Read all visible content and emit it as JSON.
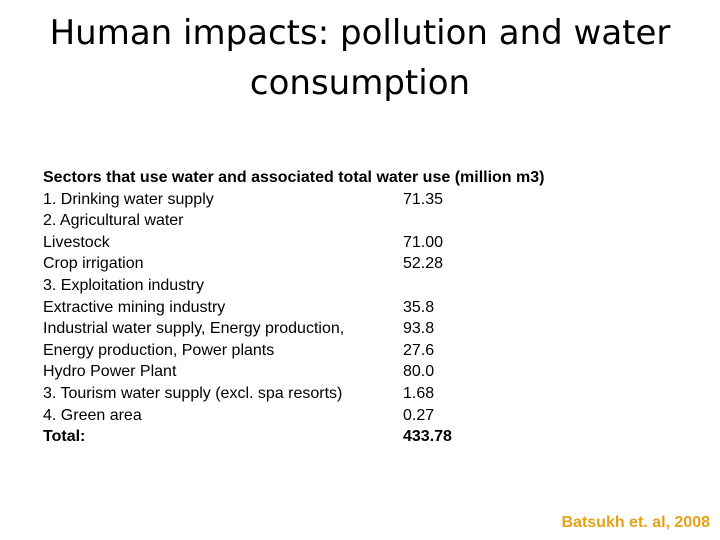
{
  "title": {
    "line1": "Human impacts: pollution and water",
    "line2": "consumption"
  },
  "table": {
    "header": "Sectors that use water  and associated total water use (million m3)",
    "rows": [
      {
        "label": "1.  Drinking water supply",
        "value": "71.35"
      },
      {
        "label": "2.  Agricultural water",
        "value": ""
      },
      {
        "label": "Livestock",
        "value": "71.00"
      },
      {
        "label": "Crop irrigation",
        "value": "52.28"
      },
      {
        "label": "3. Exploitation industry",
        "value": ""
      },
      {
        "label": "Extractive mining industry",
        "value": "35.8"
      },
      {
        "label": "Industrial water supply, Energy production,",
        "value": "93.8"
      },
      {
        "label": "Energy production, Power plants",
        "value": "27.6"
      },
      {
        "label": "Hydro Power Plant",
        "value": "80.0"
      },
      {
        "label": "3. Tourism water supply (excl. spa resorts)",
        "value": "1.68"
      },
      {
        "label": "4. Green area",
        "value": "0.27"
      }
    ],
    "total": {
      "label": "Total:",
      "value": "433.78"
    }
  },
  "citation": "Batsukh et. al, 2008",
  "colors": {
    "citation": "#e6a117",
    "text": "#000000",
    "background": "#ffffff"
  }
}
